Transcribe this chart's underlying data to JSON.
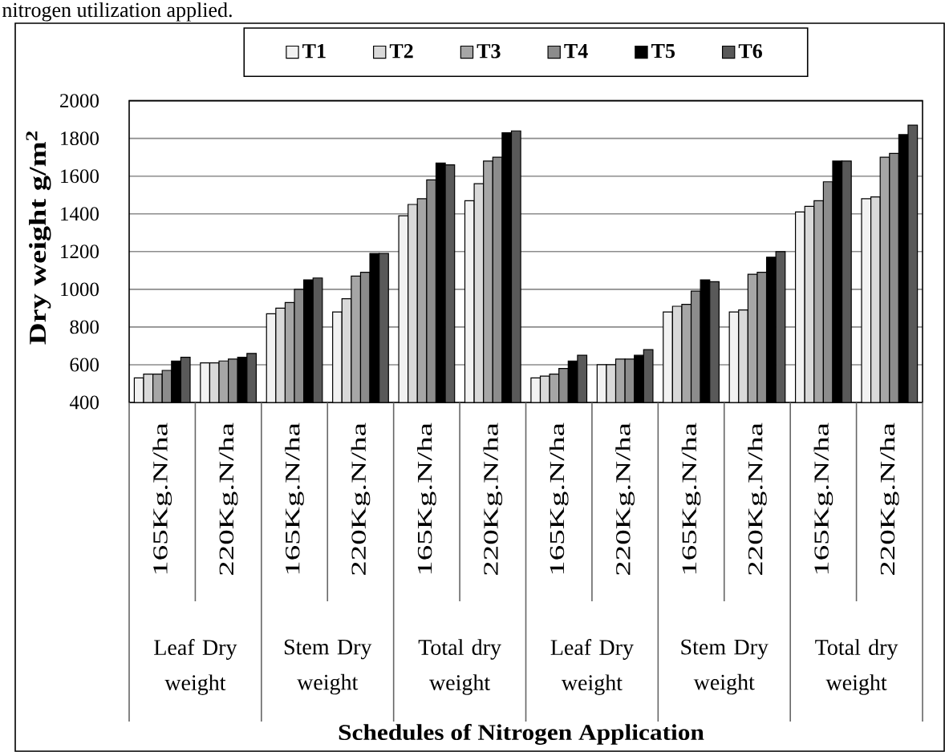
{
  "chart_data": {
    "type": "bar",
    "title": "nitrogen utilization applied.",
    "ylabel": "Dry weight g/m$^{2}$",
    "categories": [
      "165Kg.N/ha",
      "220Kg.N/ha",
      "165Kg.N/ha",
      "220Kg.N/ha",
      "165Kg.N/ha",
      "220Kg.N/ha",
      "165Kg.N/ha",
      "220Kg.N/ha",
      "165Kg.N/ha",
      "220Kg.N/ha",
      "165Kg.N/ha",
      "220Kg.N/ha"
    ],
    "series": [
      {
        "name": "T1",
        "color": "#f2f2f2",
        "values": [
          530,
          610,
          870,
          880,
          1390,
          1470,
          530,
          600,
          880,
          880,
          1410,
          1480
        ]
      },
      {
        "name": "T2",
        "color": "#d9d9d9",
        "values": [
          550,
          610,
          900,
          950,
          1450,
          1560,
          540,
          600,
          910,
          890,
          1440,
          1490
        ]
      },
      {
        "name": "T3",
        "color": "#a6a6a6",
        "values": [
          550,
          620,
          930,
          1070,
          1480,
          1680,
          550,
          630,
          920,
          1080,
          1470,
          1700
        ]
      },
      {
        "name": "T4",
        "color": "#8c8c8c",
        "values": [
          570,
          630,
          1000,
          1090,
          1580,
          1700,
          580,
          630,
          990,
          1090,
          1570,
          1720
        ]
      },
      {
        "name": "T5",
        "color": "#000000",
        "values": [
          620,
          640,
          1050,
          1190,
          1670,
          1830,
          620,
          650,
          1050,
          1170,
          1680,
          1820
        ]
      },
      {
        "name": "T6",
        "color": "#595959",
        "values": [
          640,
          660,
          1060,
          1190,
          1660,
          1840,
          650,
          680,
          1040,
          1200,
          1680,
          1870
        ]
      }
    ],
    "ylim": [
      400,
      2000
    ],
    "yticks": [
      400,
      600,
      800,
      1000,
      1200,
      1400,
      1600,
      1800,
      2000
    ],
    "grid": "y",
    "legend": "top",
    "annotations": [
      "Leaf Dry weight",
      "Stem Dry weight",
      "Total dry weight",
      "Leaf Dry weight",
      "Stem Dry weight",
      "Total dry weight",
      "Schedules of Nitrogen Application"
    ]
  }
}
